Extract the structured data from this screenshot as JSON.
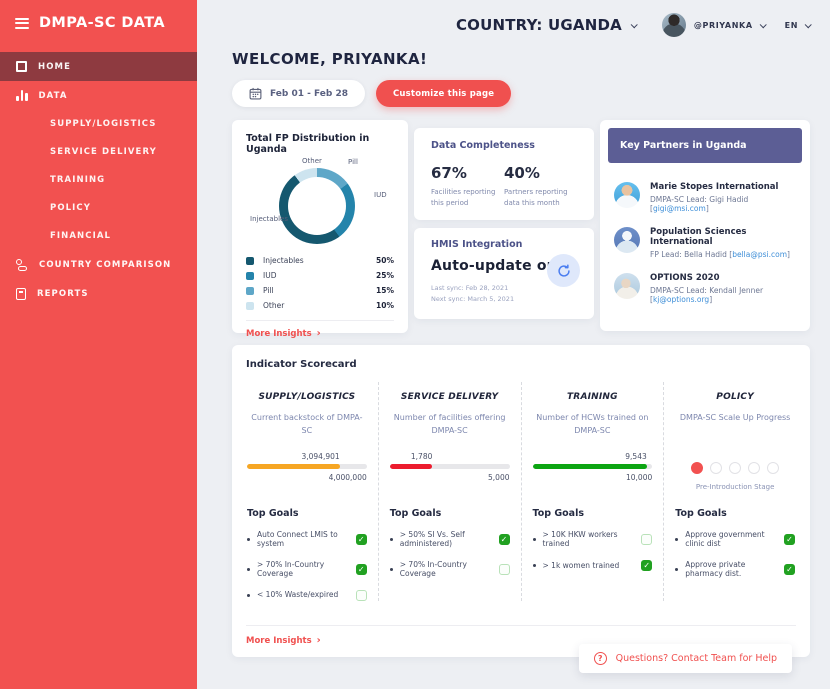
{
  "sidebar": {
    "brand": "DMPA-SC DATA",
    "items": {
      "home": "HOME",
      "data": "DATA",
      "country_comparison": "COUNTRY COMPARISON",
      "reports": "REPORTS"
    },
    "data_sub_items": [
      "SUPPLY/LOGISTICS",
      "SERVICE DELIVERY",
      "TRAINING",
      "POLICY",
      "FINANCIAL"
    ]
  },
  "topbar": {
    "country": "COUNTRY: UGANDA",
    "username": "@PRIYANKA",
    "language": "EN"
  },
  "page": {
    "welcome": "WELCOME, PRIYANKA!",
    "date_range": "Feb 01 - Feb 28",
    "customize_button": "Customize this page",
    "more_insights": "More Insights",
    "more_insights_arrow": "›"
  },
  "chart_data": {
    "type": "pie",
    "title": "Total FP Distribution in Uganda",
    "categories": [
      "Injectables",
      "IUD",
      "Pill",
      "Other"
    ],
    "values": [
      50,
      25,
      15,
      10
    ],
    "unit": "percent",
    "legend_position": "bottom-list",
    "segments": [
      {
        "label": "Pill",
        "pct": 15,
        "color": "#5ea7c8"
      },
      {
        "label": "IUD",
        "pct": 25,
        "color": "#2484ab"
      },
      {
        "label": "Injectables",
        "pct": 50,
        "color": "#15586f"
      },
      {
        "label": "Other",
        "pct": 10,
        "color": "#cde4ef"
      }
    ]
  },
  "fp_card": {
    "title": "Total FP Distribution in Uganda",
    "legend": [
      {
        "label": "Injectables",
        "value": "50%",
        "color": "#15586f"
      },
      {
        "label": "IUD",
        "value": "25%",
        "color": "#2484ab"
      },
      {
        "label": "Pill",
        "value": "15%",
        "color": "#5ea7c8"
      },
      {
        "label": "Other",
        "value": "10%",
        "color": "#cde4ef"
      }
    ]
  },
  "completeness": {
    "title": "Data Completeness",
    "stats": [
      {
        "value": "67%",
        "caption": "Facilities reporting this period"
      },
      {
        "value": "40%",
        "caption": "Partners reporting data this month"
      }
    ]
  },
  "hmis": {
    "title": "HMIS Integration",
    "status": "Auto-update on",
    "last_sync": "Last sync: Feb 28, 2021",
    "next_sync": "Next sync: March 5, 2021"
  },
  "partners": {
    "title": "Key Partners in Uganda",
    "header_color": "#5c5e95",
    "bracket_close": "]",
    "list": [
      {
        "name": "Marie Stopes International",
        "lead_prefix": "DMPA-SC Lead: Gigi Hadid [",
        "email": "gigi@msi.com"
      },
      {
        "name": "Population Sciences International",
        "lead_prefix": "FP Lead: Bella Hadid [",
        "email": "bella@psi.com"
      },
      {
        "name": "OPTIONS 2020",
        "lead_prefix": "DMPA-SC Lead: Kendall Jenner [",
        "email": "kj@options.org"
      }
    ]
  },
  "scorecard": {
    "title": "Indicator Scorecard",
    "goals_title": "Top Goals",
    "check_glyph": "✓",
    "columns": [
      {
        "header": "SUPPLY/LOGISTICS",
        "subtitle": "Current backstock of DMPA-SC",
        "bar": {
          "value": 3094901,
          "max": 4000000,
          "value_label": "3,094,901",
          "max_label": "4,000,000",
          "color": "#f6a623"
        },
        "goals": [
          {
            "text": "Auto Connect LMIS to system",
            "checked": true
          },
          {
            "text": "> 70% In-Country Coverage",
            "checked": true
          },
          {
            "text": "< 10% Waste/expired",
            "checked": false
          }
        ]
      },
      {
        "header": "SERVICE DELIVERY",
        "subtitle": "Number of facilities offering DMPA-SC",
        "bar": {
          "value": 1780,
          "max": 5000,
          "value_label": "1,780",
          "max_label": "5,000",
          "color": "#ec1c2e"
        },
        "goals": [
          {
            "text": "> 50% SI Vs. Self administered)",
            "checked": true
          },
          {
            "text": "> 70% In-Country Coverage",
            "checked": false
          }
        ]
      },
      {
        "header": "TRAINING",
        "subtitle": "Number of HCWs trained on DMPA-SC",
        "bar": {
          "value": 9543,
          "max": 10000,
          "value_label": "9,543",
          "max_label": "10,000",
          "color": "#0ca512"
        },
        "goals": [
          {
            "text": "> 10K HKW workers trained",
            "checked": false
          },
          {
            "text": "> 1k women trained",
            "checked": true
          }
        ]
      },
      {
        "header": "POLICY",
        "subtitle": "DMPA-SC Scale Up Progress",
        "stages": {
          "total": 5,
          "current": 1,
          "label": "Pre-Introduction Stage",
          "color": "#f25150"
        },
        "goals": [
          {
            "text": "Approve government clinic dist",
            "checked": true
          },
          {
            "text": "Approve private pharmacy dist.",
            "checked": true
          }
        ]
      }
    ]
  },
  "help": {
    "icon": "?",
    "label": "Questions? Contact Team for Help"
  }
}
